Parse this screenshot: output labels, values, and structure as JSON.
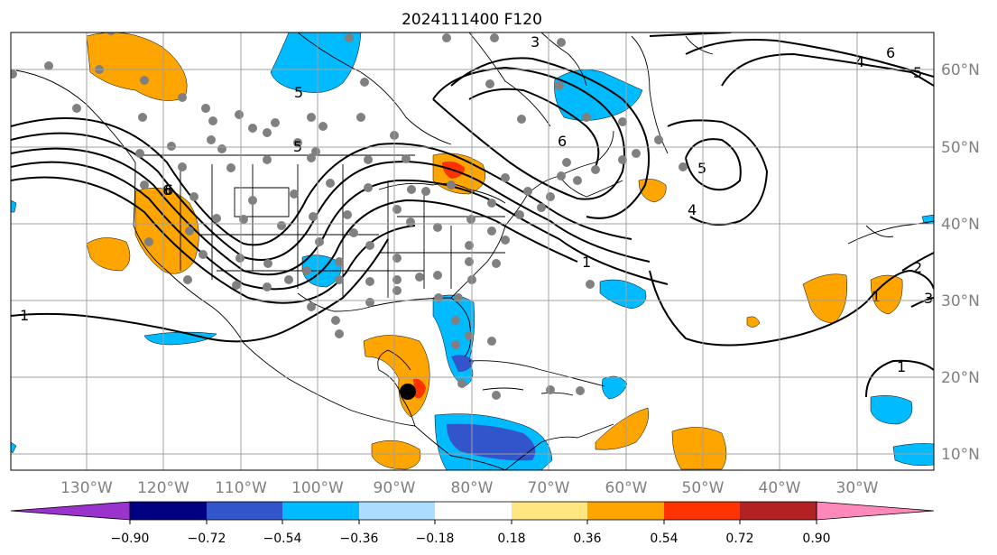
{
  "title": "2024111400 F120",
  "map": {
    "longitude_labels": [
      "130°W",
      "120°W",
      "110°W",
      "100°W",
      "90°W",
      "80°W",
      "70°W",
      "60°W",
      "50°W",
      "40°W",
      "30°W"
    ],
    "latitude_labels": [
      "60°N",
      "50°N",
      "40°N",
      "30°N",
      "20°N",
      "10°N"
    ],
    "grid": true,
    "storm_marker": {
      "lon": -87.5,
      "lat": 18.0
    },
    "contour_labels": [
      "6",
      "5",
      "6",
      "3",
      "5",
      "6",
      "4",
      "5",
      "4",
      "6",
      "5",
      "1",
      "1",
      "1",
      "2",
      "3",
      "1"
    ],
    "colors": {
      "ocean": "#ffffff",
      "land_border": "#000000",
      "station": "#808080"
    }
  },
  "colorbar": {
    "ticks": [
      "−0.90",
      "−0.72",
      "−0.54",
      "−0.36",
      "−0.18",
      "0.18",
      "0.36",
      "0.54",
      "0.72",
      "0.90"
    ],
    "colors": [
      "#9933cc",
      "#000080",
      "#3355cc",
      "#00bbff",
      "#aaddff",
      "#ffffff",
      "#ffe680",
      "#ffa500",
      "#ff3300",
      "#b22222",
      "#ff88bb"
    ]
  }
}
